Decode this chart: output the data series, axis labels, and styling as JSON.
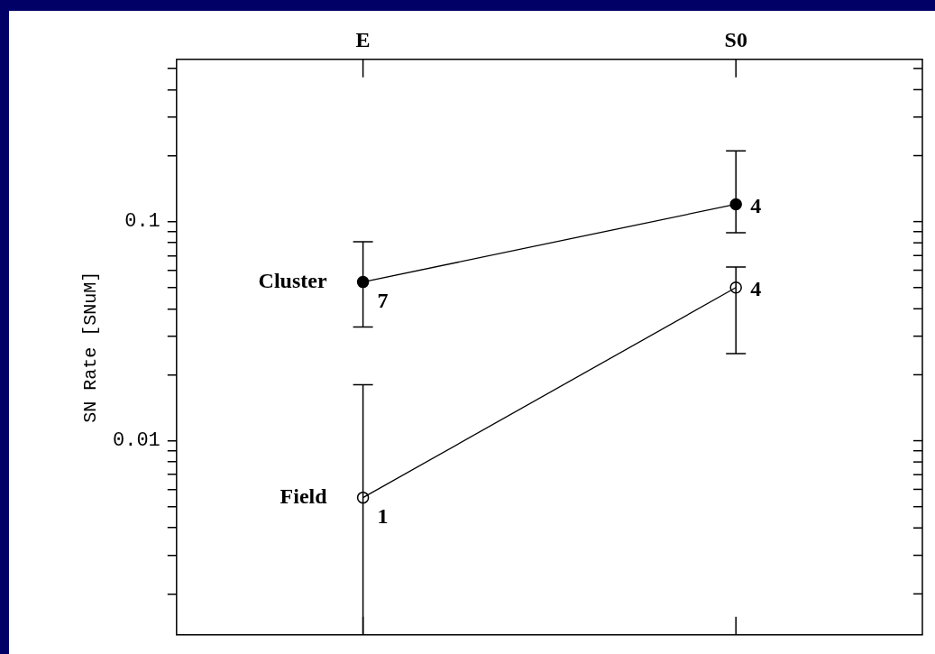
{
  "chart_data": {
    "type": "line",
    "ylabel": "SN Rate [SNuM]",
    "categories": [
      "E",
      "S0"
    ],
    "log": "y",
    "ylim": [
      0.0013,
      0.55
    ],
    "marker": "circle",
    "line_style": "solid",
    "yticks": [
      {
        "value": 0.002,
        "label": null
      },
      {
        "value": 0.003,
        "label": null
      },
      {
        "value": 0.004,
        "label": null
      },
      {
        "value": 0.005,
        "label": null
      },
      {
        "value": 0.006,
        "label": null
      },
      {
        "value": 0.007,
        "label": null
      },
      {
        "value": 0.008,
        "label": null
      },
      {
        "value": 0.009,
        "label": null
      },
      {
        "value": 0.01,
        "label": "0.01"
      },
      {
        "value": 0.02,
        "label": null
      },
      {
        "value": 0.03,
        "label": null
      },
      {
        "value": 0.04,
        "label": null
      },
      {
        "value": 0.05,
        "label": null
      },
      {
        "value": 0.06,
        "label": null
      },
      {
        "value": 0.07,
        "label": null
      },
      {
        "value": 0.08,
        "label": null
      },
      {
        "value": 0.09,
        "label": null
      },
      {
        "value": 0.1,
        "label": "0.1"
      },
      {
        "value": 0.2,
        "label": null
      },
      {
        "value": 0.3,
        "label": null
      },
      {
        "value": 0.4,
        "label": null
      },
      {
        "value": 0.5,
        "label": null
      }
    ],
    "series": [
      {
        "name": "Cluster",
        "color": "#000000",
        "values": [
          0.053,
          0.12
        ],
        "errors": [
          [
            0.033,
            0.081
          ],
          [
            0.089,
            0.21
          ]
        ]
      },
      {
        "name": "Field",
        "color": "#000000",
        "values": [
          0.0055,
          0.05
        ],
        "errors": [
          [
            0.0013,
            0.018
          ],
          [
            0.025,
            0.062
          ]
        ]
      }
    ],
    "annotations": [
      {
        "text": "7",
        "x": "E",
        "y": 0.053
      },
      {
        "text": "4",
        "x": "S0",
        "y": 0.12
      },
      {
        "text": "1",
        "x": "E",
        "y": 0.0055
      },
      {
        "text": "4",
        "x": "S0",
        "y": 0.05
      }
    ]
  }
}
